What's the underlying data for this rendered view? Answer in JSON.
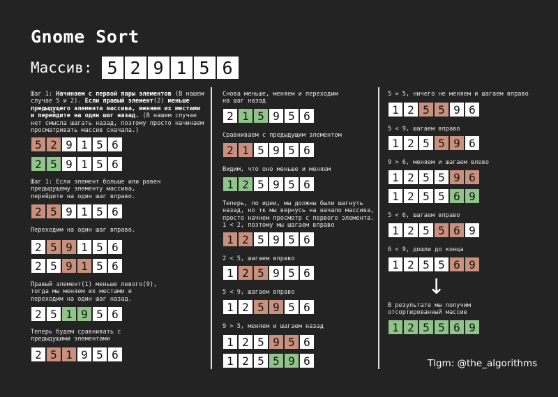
{
  "title": "Gnome Sort",
  "main_array": {
    "label": "Массив:",
    "values": [
      "5",
      "2",
      "9",
      "1",
      "5",
      "6"
    ]
  },
  "colors": {
    "background": "#232323",
    "highlight_red": "#c9917d",
    "highlight_green": "#8fc48a",
    "cell": "#ffffff"
  },
  "col1": {
    "t1": {
      "a": "Шаг 1: ",
      "b": "Начинаем с первой пары элементов",
      "c": " (В нашем случае 5 и 2). ",
      "d": "Если правый элемент",
      "e": "(2) ",
      "f": "меньше предыдущего элемента массива, меняем их местами и перейдите на один шаг назад.",
      "g": " (В нашем случае нет смысла шагать назад, поэтому просто начинаем просматривать массив сначала.)"
    },
    "a1": {
      "values": [
        "5",
        "2",
        "9",
        "1",
        "5",
        "6"
      ],
      "colors": [
        "r",
        "r",
        "w",
        "w",
        "w",
        "w"
      ]
    },
    "a2": {
      "values": [
        "2",
        "5",
        "9",
        "1",
        "5",
        "6"
      ],
      "colors": [
        "g",
        "g",
        "w",
        "w",
        "w",
        "w"
      ]
    },
    "t2": "Шаг 1: Если элемент больше или равен предыдущему элементу массива, перейдите на один шаг вправо.",
    "a3": {
      "values": [
        "2",
        "5",
        "9",
        "1",
        "5",
        "6"
      ],
      "colors": [
        "r",
        "r",
        "w",
        "w",
        "w",
        "w"
      ]
    },
    "t3": "Переходим на один шаг вправо.",
    "a4": {
      "values": [
        "2",
        "5",
        "9",
        "1",
        "5",
        "6"
      ],
      "colors": [
        "w",
        "r",
        "r",
        "w",
        "w",
        "w"
      ]
    },
    "a5": {
      "values": [
        "2",
        "5",
        "9",
        "1",
        "5",
        "6"
      ],
      "colors": [
        "w",
        "w",
        "r",
        "r",
        "w",
        "w"
      ]
    },
    "t4": "Правый элемент(1) меньше левого(9), тогда мы меняем их местами и переходим на один шаг назад.",
    "a6": {
      "values": [
        "2",
        "5",
        "1",
        "9",
        "5",
        "6"
      ],
      "colors": [
        "w",
        "w",
        "g",
        "g",
        "w",
        "w"
      ]
    },
    "t5": "Теперь будем сравнивать с предыдущими элементами",
    "a7": {
      "values": [
        "2",
        "5",
        "1",
        "9",
        "5",
        "6"
      ],
      "colors": [
        "w",
        "r",
        "r",
        "w",
        "w",
        "w"
      ]
    }
  },
  "col2": {
    "t1": "Снова меньше, меняем и переходим на шаг назад",
    "a1": {
      "values": [
        "2",
        "1",
        "5",
        "9",
        "5",
        "6"
      ],
      "colors": [
        "w",
        "g",
        "g",
        "w",
        "w",
        "w"
      ]
    },
    "t2": "Сравниваем с предыдущим элементом",
    "a2": {
      "values": [
        "2",
        "1",
        "5",
        "9",
        "5",
        "6"
      ],
      "colors": [
        "r",
        "r",
        "w",
        "w",
        "w",
        "w"
      ]
    },
    "t3": "Видим, что оно меньше и меняем",
    "a3": {
      "values": [
        "1",
        "2",
        "5",
        "9",
        "5",
        "6"
      ],
      "colors": [
        "g",
        "g",
        "w",
        "w",
        "w",
        "w"
      ]
    },
    "t4": "Теперь, по идеи, мы должны были шагнуть назад, но тк мы вернусь на начало массива, просто начнем просмотр с первого элемента. 1 < 2, поэтому мы шагаем вправо",
    "a4": {
      "values": [
        "1",
        "2",
        "5",
        "9",
        "5",
        "6"
      ],
      "colors": [
        "r",
        "r",
        "w",
        "w",
        "w",
        "w"
      ]
    },
    "t5": "2 < 5, шагаем вправо",
    "a5": {
      "values": [
        "1",
        "2",
        "5",
        "9",
        "5",
        "6"
      ],
      "colors": [
        "w",
        "r",
        "r",
        "w",
        "w",
        "w"
      ]
    },
    "t6": "5 < 9, шагаем вправо",
    "a6": {
      "values": [
        "1",
        "2",
        "5",
        "9",
        "5",
        "6"
      ],
      "colors": [
        "w",
        "w",
        "r",
        "r",
        "w",
        "w"
      ]
    },
    "t7": "9 > 5, меняем и шагаем назад",
    "a7": {
      "values": [
        "1",
        "2",
        "5",
        "9",
        "5",
        "6"
      ],
      "colors": [
        "w",
        "w",
        "w",
        "r",
        "r",
        "w"
      ]
    },
    "a8": {
      "values": [
        "1",
        "2",
        "5",
        "5",
        "9",
        "6"
      ],
      "colors": [
        "w",
        "w",
        "w",
        "g",
        "g",
        "w"
      ]
    }
  },
  "col3": {
    "t1": "5 = 5, ничего не меняем и шагаем вправо",
    "a1": {
      "values": [
        "1",
        "2",
        "5",
        "5",
        "9",
        "6"
      ],
      "colors": [
        "w",
        "w",
        "r",
        "r",
        "w",
        "w"
      ]
    },
    "t2": "5 < 9, шагаем вправо",
    "a2": {
      "values": [
        "1",
        "2",
        "5",
        "5",
        "9",
        "6"
      ],
      "colors": [
        "w",
        "w",
        "w",
        "r",
        "r",
        "w"
      ]
    },
    "t3": "9 > 6, меняем и шагаем влево",
    "a3": {
      "values": [
        "1",
        "2",
        "5",
        "5",
        "9",
        "6"
      ],
      "colors": [
        "w",
        "w",
        "w",
        "w",
        "r",
        "r"
      ]
    },
    "a4": {
      "values": [
        "1",
        "2",
        "5",
        "5",
        "6",
        "9"
      ],
      "colors": [
        "w",
        "w",
        "w",
        "w",
        "g",
        "g"
      ]
    },
    "t4": "5 < 6, шагаем вправо",
    "a5": {
      "values": [
        "1",
        "2",
        "5",
        "5",
        "6",
        "9"
      ],
      "colors": [
        "w",
        "w",
        "w",
        "r",
        "r",
        "w"
      ]
    },
    "t5": "6 < 9, дошли до конца",
    "a6": {
      "values": [
        "1",
        "2",
        "5",
        "5",
        "6",
        "9"
      ],
      "colors": [
        "w",
        "w",
        "w",
        "w",
        "r",
        "r"
      ]
    },
    "arrow": "↓",
    "t6": "В результате мы получим отсортированный массив",
    "a7": {
      "values": [
        "1",
        "2",
        "5",
        "5",
        "6",
        "9"
      ],
      "colors": [
        "g",
        "g",
        "g",
        "g",
        "g",
        "g"
      ]
    }
  },
  "brand": "Tlgm: @the_algorithms"
}
